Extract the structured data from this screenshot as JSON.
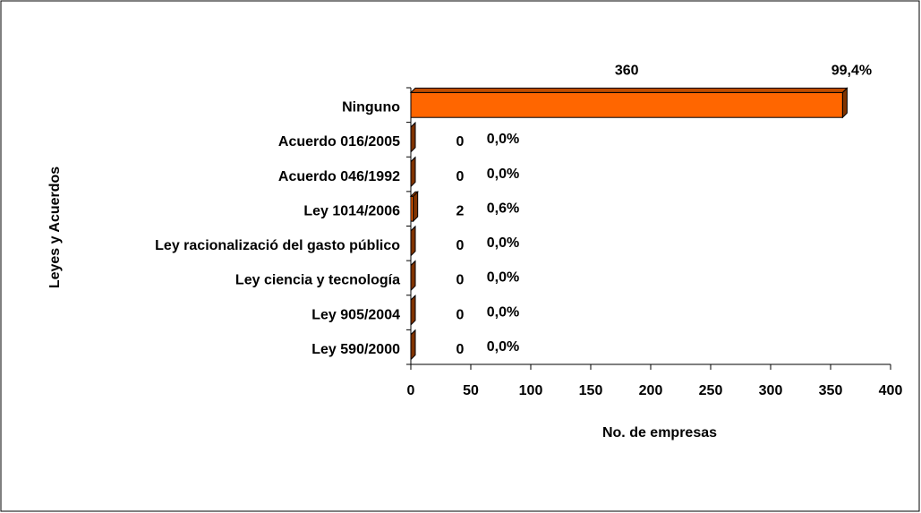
{
  "chart_data": {
    "type": "bar",
    "orientation": "horizontal",
    "x_label": "No. de empresas",
    "y_label": "Leyes y Acuerdos",
    "categories": [
      "Ninguno",
      "Acuerdo 016/2005",
      "Acuerdo 046/1992",
      "Ley 1014/2006",
      "Ley racionalizació del gasto público",
      "Ley ciencia y tecnología",
      "Ley 905/2004",
      "Ley 590/2000"
    ],
    "values": [
      360,
      0,
      0,
      2,
      0,
      0,
      0,
      0
    ],
    "percent_labels": [
      "99,4%",
      "0,0%",
      "0,0%",
      "0,6%",
      "0,0%",
      "0,0%",
      "0,0%",
      "0,0%"
    ],
    "color": "#ff6600",
    "xlim": [
      0,
      400
    ],
    "xticks": [
      0,
      50,
      100,
      150,
      200,
      250,
      300,
      350,
      400
    ]
  }
}
